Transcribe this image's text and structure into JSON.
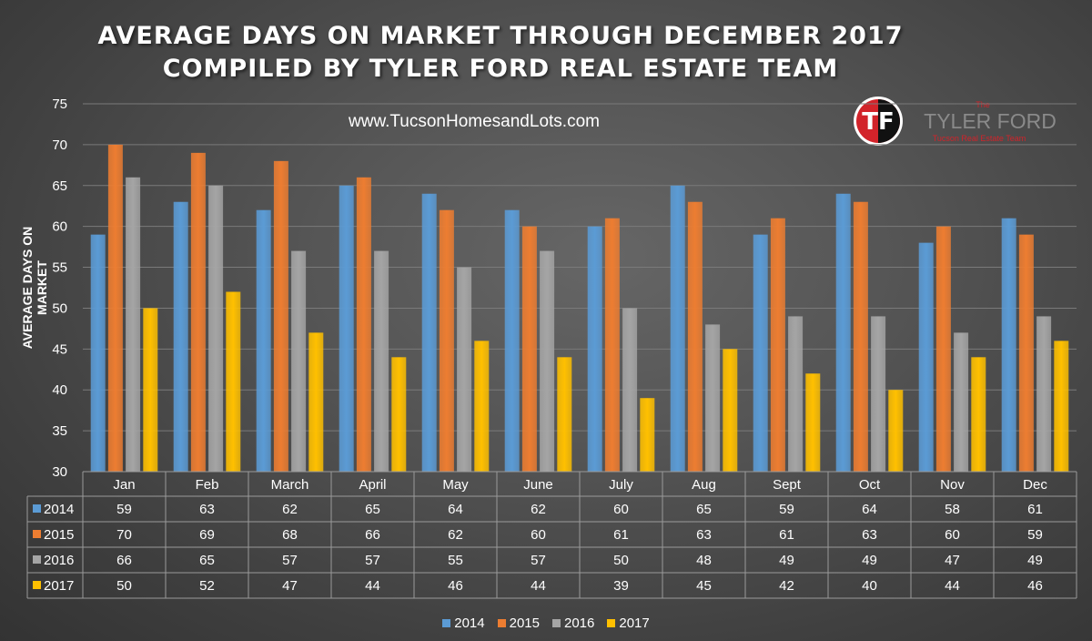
{
  "header": {
    "title_line1": "AVERAGE DAYS ON MARKET THROUGH DECEMBER 2017",
    "title_line2": "COMPILED BY TYLER FORD REAL ESTATE TEAM",
    "website": "www.TucsonHomesandLots.com"
  },
  "logo": {
    "monogram": "TF",
    "small_text": "The",
    "name": "TYLER FORD",
    "tagline": "Tucson Real Estate Team"
  },
  "chart_data": {
    "type": "bar",
    "title": "AVERAGE DAYS ON MARKET THROUGH DECEMBER 2017",
    "ylabel": "AVERAGE DAYS ON MARKET",
    "xlabel": "",
    "ylim": [
      30,
      75
    ],
    "yticks": [
      30,
      35,
      40,
      45,
      50,
      55,
      60,
      65,
      70,
      75
    ],
    "grid": true,
    "legend_position": "bottom",
    "categories": [
      "Jan",
      "Feb",
      "March",
      "April",
      "May",
      "June",
      "July",
      "Aug",
      "Sept",
      "Oct",
      "Nov",
      "Dec"
    ],
    "series": [
      {
        "name": "2014",
        "color": "#5b9bd5",
        "values": [
          59,
          63,
          62,
          65,
          64,
          62,
          60,
          65,
          59,
          64,
          58,
          61
        ]
      },
      {
        "name": "2015",
        "color": "#ed7d31",
        "values": [
          70,
          69,
          68,
          66,
          62,
          60,
          61,
          63,
          61,
          63,
          60,
          59
        ]
      },
      {
        "name": "2016",
        "color": "#a5a5a5",
        "values": [
          66,
          65,
          57,
          57,
          55,
          57,
          50,
          48,
          49,
          49,
          47,
          49
        ]
      },
      {
        "name": "2017",
        "color": "#ffc000",
        "values": [
          50,
          52,
          47,
          44,
          46,
          44,
          39,
          45,
          42,
          40,
          44,
          46
        ]
      }
    ],
    "data_table": true
  }
}
